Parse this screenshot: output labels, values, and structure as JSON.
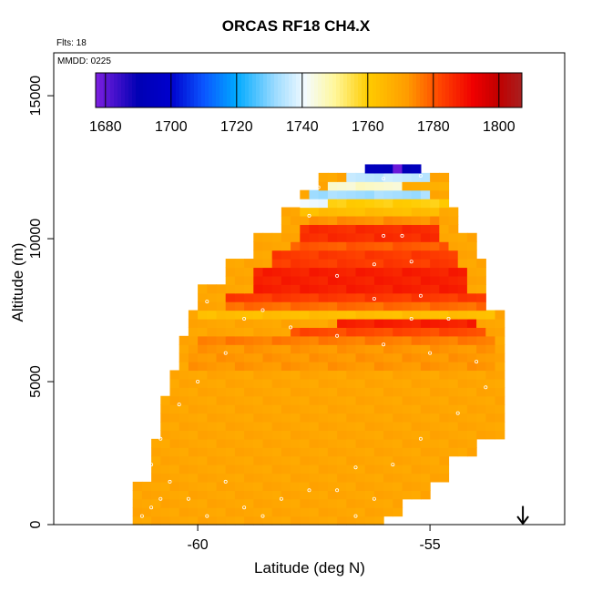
{
  "chart_data": {
    "type": "heatmap",
    "title": "ORCAS RF18 CH4.X",
    "flights_label": "Flts: 18",
    "date_label": "MMDD: 0225",
    "xlabel": "Latitude (deg N)",
    "ylabel": "Altitude (m)",
    "xlim": [
      -63.1,
      -52.1
    ],
    "ylim": [
      0,
      16500
    ],
    "x_ticks": [
      -60,
      -55
    ],
    "x_tick_labels": [
      "-60",
      "-55"
    ],
    "y_ticks": [
      0,
      5000,
      10000,
      15000
    ],
    "y_tick_labels": [
      "0",
      "5000",
      "10000",
      "15000"
    ],
    "colorbar": {
      "min": 1677,
      "max": 1807,
      "ticks": [
        1680,
        1700,
        1720,
        1740,
        1760,
        1780,
        1800
      ],
      "tick_labels": [
        "1680",
        "1700",
        "1720",
        "1740",
        "1760",
        "1780",
        "1800"
      ],
      "stops": [
        {
          "value": 1677,
          "color": "#7d1fe0"
        },
        {
          "value": 1690,
          "color": "#0000b4"
        },
        {
          "value": 1700,
          "color": "#0000cd"
        },
        {
          "value": 1710,
          "color": "#0a56ff"
        },
        {
          "value": 1720,
          "color": "#00aaff"
        },
        {
          "value": 1732,
          "color": "#9fdcff"
        },
        {
          "value": 1741,
          "color": "#f4fbff"
        },
        {
          "value": 1750,
          "color": "#fff79a"
        },
        {
          "value": 1760,
          "color": "#ffcc00"
        },
        {
          "value": 1772,
          "color": "#ff9c00"
        },
        {
          "value": 1782,
          "color": "#ff4500"
        },
        {
          "value": 1792,
          "color": "#f00000"
        },
        {
          "value": 1800,
          "color": "#c00000"
        },
        {
          "value": 1807,
          "color": "#a82020"
        }
      ]
    },
    "curtain": {
      "grid_step_deg": 0.2,
      "grid_step_m": 300,
      "background_value": 1772,
      "domain": [
        {
          "alt": 0,
          "lat_min": -61.4,
          "lat_max": -56.0
        },
        {
          "alt": 300,
          "lat_min": -61.4,
          "lat_max": -55.6
        },
        {
          "alt": 900,
          "lat_min": -61.4,
          "lat_max": -55.0
        },
        {
          "alt": 1500,
          "lat_min": -61.0,
          "lat_max": -54.6
        },
        {
          "alt": 2400,
          "lat_min": -61.0,
          "lat_max": -54.0
        },
        {
          "alt": 3000,
          "lat_min": -60.8,
          "lat_max": -53.4
        },
        {
          "alt": 3600,
          "lat_min": -60.8,
          "lat_max": -53.4
        },
        {
          "alt": 4500,
          "lat_min": -60.6,
          "lat_max": -53.4
        },
        {
          "alt": 5400,
          "lat_min": -60.4,
          "lat_max": -53.4
        },
        {
          "alt": 6600,
          "lat_min": -60.2,
          "lat_max": -53.4
        },
        {
          "alt": 7500,
          "lat_min": -60.0,
          "lat_max": -53.8
        },
        {
          "alt": 8400,
          "lat_min": -59.4,
          "lat_max": -53.8
        },
        {
          "alt": 9300,
          "lat_min": -58.8,
          "lat_max": -54.0
        },
        {
          "alt": 10200,
          "lat_min": -58.2,
          "lat_max": -54.4
        },
        {
          "alt": 11100,
          "lat_min": -57.8,
          "lat_max": -54.6
        },
        {
          "alt": 11700,
          "lat_min": -57.4,
          "lat_max": -54.6
        },
        {
          "alt": 12300,
          "lat_min": -56.4,
          "lat_max": -55.2
        },
        {
          "alt": 12500,
          "lat_min": -56.4,
          "lat_max": -55.2
        }
      ],
      "overrides": [
        {
          "alt_min": 4300,
          "alt_max": 4500,
          "lat_min": -53.6,
          "lat_max": -53.2,
          "value": 1772
        },
        {
          "alt_min": 5400,
          "alt_max": 6300,
          "lat_min": -60.2,
          "lat_max": -53.6,
          "value": 1775
        },
        {
          "alt_min": 6300,
          "alt_max": 6600,
          "lat_min": -60.0,
          "lat_max": -53.6,
          "value": 1778
        },
        {
          "alt_min": 6600,
          "alt_max": 6900,
          "lat_min": -58.0,
          "lat_max": -53.8,
          "value": 1784
        },
        {
          "alt_min": 6900,
          "alt_max": 7200,
          "lat_min": -57.0,
          "lat_max": -54.0,
          "value": 1790
        },
        {
          "alt_min": 7200,
          "alt_max": 7500,
          "lat_min": -60.0,
          "lat_max": -53.6,
          "value": 1766
        },
        {
          "alt_min": 7500,
          "alt_max": 7800,
          "lat_min": -59.4,
          "lat_max": -53.8,
          "value": 1780
        },
        {
          "alt_min": 7800,
          "alt_max": 8100,
          "lat_min": -59.4,
          "lat_max": -53.8,
          "value": 1786
        },
        {
          "alt_min": 8100,
          "alt_max": 9000,
          "lat_min": -58.8,
          "lat_max": -54.2,
          "value": 1790
        },
        {
          "alt_min": 9000,
          "alt_max": 9600,
          "lat_min": -58.4,
          "lat_max": -54.4,
          "value": 1786
        },
        {
          "alt_min": 9600,
          "alt_max": 9900,
          "lat_min": -58.0,
          "lat_max": -54.6,
          "value": 1782
        },
        {
          "alt_min": 9900,
          "alt_max": 10500,
          "lat_min": -57.8,
          "lat_max": -54.8,
          "value": 1788
        },
        {
          "alt_min": 10500,
          "alt_max": 10800,
          "lat_min": -57.6,
          "lat_max": -54.8,
          "value": 1776
        },
        {
          "alt_min": 10800,
          "alt_max": 11100,
          "lat_min": -57.8,
          "lat_max": -54.8,
          "value": 1766
        },
        {
          "alt_min": 11100,
          "alt_max": 11400,
          "lat_min": -57.6,
          "lat_max": -54.6,
          "value": 1762
        },
        {
          "alt_min": 11100,
          "alt_max": 11400,
          "lat_min": -58.0,
          "lat_max": -57.2,
          "value": 1742
        },
        {
          "alt_min": 11400,
          "alt_max": 11700,
          "lat_min": -57.6,
          "lat_max": -55.0,
          "value": 1735
        },
        {
          "alt_min": 11700,
          "alt_max": 12000,
          "lat_min": -57.2,
          "lat_max": -54.8,
          "value": 1748
        },
        {
          "alt_min": 12000,
          "alt_max": 12300,
          "lat_min": -56.8,
          "lat_max": -55.0,
          "value": 1738
        },
        {
          "alt_min": 11700,
          "alt_max": 12000,
          "lat_min": -55.6,
          "lat_max": -54.6,
          "value": 1770
        },
        {
          "alt_min": 12300,
          "alt_max": 12500,
          "lat_min": -56.4,
          "lat_max": -55.2,
          "value": 1695
        },
        {
          "alt_min": 12300,
          "alt_max": 12500,
          "lat_min": -55.8,
          "lat_max": -55.6,
          "value": 1682
        }
      ]
    },
    "flight_track": [
      {
        "lat": -61.2,
        "alt": 300
      },
      {
        "lat": -61.0,
        "alt": 600
      },
      {
        "lat": -60.8,
        "alt": 900
      },
      {
        "lat": -60.6,
        "alt": 1500
      },
      {
        "lat": -60.2,
        "alt": 900
      },
      {
        "lat": -59.8,
        "alt": 300
      },
      {
        "lat": -59.4,
        "alt": 1500
      },
      {
        "lat": -59.0,
        "alt": 600
      },
      {
        "lat": -58.6,
        "alt": 300
      },
      {
        "lat": -58.2,
        "alt": 900
      },
      {
        "lat": -57.6,
        "alt": 1200
      },
      {
        "lat": -57.0,
        "alt": 1200
      },
      {
        "lat": -56.6,
        "alt": 300
      },
      {
        "lat": -56.2,
        "alt": 900
      },
      {
        "lat": -55.8,
        "alt": 2100
      },
      {
        "lat": -55.2,
        "alt": 3000
      },
      {
        "lat": -54.4,
        "alt": 3900
      },
      {
        "lat": -53.8,
        "alt": 4800
      },
      {
        "lat": -54.0,
        "alt": 5700
      },
      {
        "lat": -55.0,
        "alt": 6000
      },
      {
        "lat": -56.0,
        "alt": 6300
      },
      {
        "lat": -57.0,
        "alt": 6600
      },
      {
        "lat": -58.0,
        "alt": 6900
      },
      {
        "lat": -59.0,
        "alt": 7200
      },
      {
        "lat": -59.8,
        "alt": 7800
      },
      {
        "lat": -59.4,
        "alt": 6000
      },
      {
        "lat": -60.0,
        "alt": 5000
      },
      {
        "lat": -60.4,
        "alt": 4200
      },
      {
        "lat": -60.8,
        "alt": 3000
      },
      {
        "lat": -61.0,
        "alt": 2100
      },
      {
        "lat": -55.4,
        "alt": 7200
      },
      {
        "lat": -54.6,
        "alt": 7200
      },
      {
        "lat": -56.2,
        "alt": 7900
      },
      {
        "lat": -55.2,
        "alt": 8000
      },
      {
        "lat": -57.0,
        "alt": 8700
      },
      {
        "lat": -56.2,
        "alt": 9100
      },
      {
        "lat": -55.4,
        "alt": 9200
      },
      {
        "lat": -56.0,
        "alt": 10100
      },
      {
        "lat": -55.6,
        "alt": 10100
      },
      {
        "lat": -57.4,
        "alt": 11800
      },
      {
        "lat": -56.0,
        "alt": 12100
      },
      {
        "lat": -55.2,
        "alt": 12200
      },
      {
        "lat": -57.6,
        "alt": 10800
      },
      {
        "lat": -58.6,
        "alt": 7500
      },
      {
        "lat": -56.6,
        "alt": 2000
      }
    ],
    "marker": {
      "type": "arrow-down",
      "lat": -53.0,
      "alt_top": 650,
      "alt_bottom": 0
    }
  }
}
